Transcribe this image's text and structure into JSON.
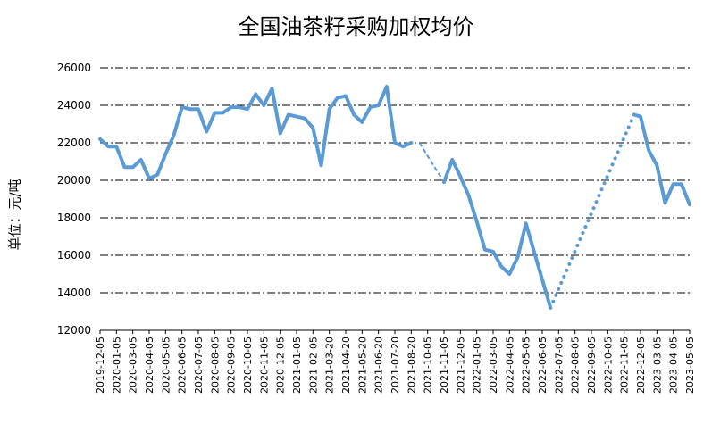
{
  "chart_data": {
    "type": "line",
    "title": "全国油茶籽采购加权均价",
    "ylabel": "单位：元/吨",
    "xlabel": "",
    "ylim": [
      12000,
      26000
    ],
    "yticks": [
      12000,
      14000,
      16000,
      18000,
      20000,
      22000,
      24000,
      26000
    ],
    "grid": true,
    "legend": "none",
    "line_color": "#5B9BD5",
    "grid_color": "#000000",
    "x_tick_labels": [
      "2019-12-05",
      "2020-01-05",
      "2020-03-05",
      "2020-04-05",
      "2020-05-05",
      "2020-06-05",
      "2020-07-05",
      "2020-08-05",
      "2020-09-05",
      "2020-10-05",
      "2020-11-05",
      "2020-12-05",
      "2021-01-05",
      "2021-02-05",
      "2021-03-20",
      "2021-04-20",
      "2021-05-20",
      "2021-06-20",
      "2021-07-20",
      "2021-08-20",
      "2021-10-05",
      "2021-11-05",
      "2021-12-05",
      "2022-01-05",
      "2022-03-05",
      "2022-04-05",
      "2022-05-05",
      "2022-06-05",
      "2022-07-05",
      "2022-08-05",
      "2022-09-05",
      "2022-10-05",
      "2022-11-05",
      "2022-12-05",
      "2023-03-05",
      "2023-04-05",
      "2023-05-05"
    ],
    "series": [
      {
        "style": "solid",
        "x": [
          0,
          0.5,
          1,
          1.5,
          2,
          2.5,
          3,
          3.5,
          4,
          4.5,
          5,
          5.5,
          6,
          6.5,
          7,
          7.5,
          8,
          8.5,
          9,
          9.5,
          10,
          10.5,
          11,
          11.5,
          12,
          12.5,
          13,
          13.5,
          14,
          14.5,
          15,
          15.5,
          16,
          16.5,
          17,
          17.5,
          18,
          18.5,
          19,
          19.5
        ],
        "values": [
          22200,
          21800,
          21800,
          20700,
          20700,
          21100,
          20100,
          20300,
          21400,
          22400,
          23900,
          23800,
          23800,
          22600,
          23600,
          23600,
          23900,
          23900,
          23800,
          24600,
          24000,
          24900,
          22500,
          23500,
          23400,
          23300,
          22800,
          20800,
          23800,
          24400,
          24500,
          23500,
          23100,
          23900,
          24000,
          25000,
          22000,
          21800,
          22000,
          null
        ]
      },
      {
        "style": "dashed",
        "x": [
          19.5,
          21
        ],
        "values": [
          22000,
          19900
        ]
      },
      {
        "style": "solid",
        "x": [
          21,
          21.5,
          22,
          22.5,
          23,
          23.5,
          24,
          24.5,
          25,
          25.5,
          26,
          26.5,
          27,
          27.5
        ],
        "values": [
          19900,
          21100,
          20200,
          19200,
          17800,
          16300,
          16200,
          15400,
          15000,
          15900,
          17700,
          16200,
          14700,
          13200
        ]
      },
      {
        "style": "dotted",
        "x": [
          27.5,
          32.6
        ],
        "values": [
          13200,
          23500
        ]
      },
      {
        "style": "solid",
        "x": [
          32.6,
          33,
          33.5,
          34,
          34.5,
          35,
          35.5,
          36
        ],
        "values": [
          23500,
          23400,
          21600,
          20800,
          18800,
          19800,
          19800,
          18700
        ]
      }
    ]
  }
}
